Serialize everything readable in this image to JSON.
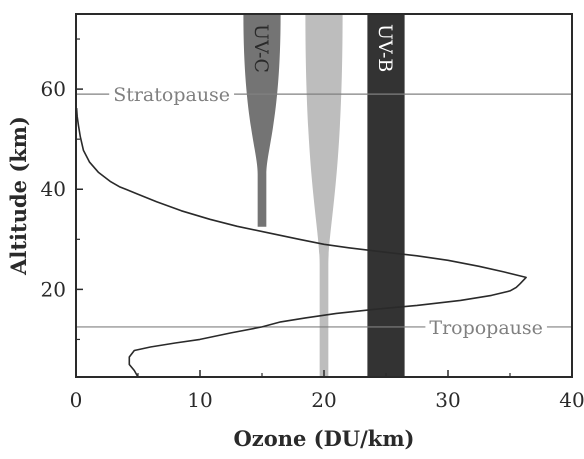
{
  "chart_data": {
    "type": "line",
    "title": "",
    "xlabel": "Ozone (DU/km)",
    "ylabel": "Altitude (km)",
    "xlim": [
      0,
      40
    ],
    "ylim": [
      2.5,
      75
    ],
    "x_ticks": [
      0,
      10,
      20,
      30,
      40
    ],
    "y_ticks": [
      20,
      40,
      60
    ],
    "x_tick_labels": [
      "0",
      "10",
      "20",
      "30",
      "40"
    ],
    "y_tick_labels": [
      "20",
      "40",
      "60"
    ],
    "grid": false,
    "series": [
      {
        "points": [
          [
            5.0,
            2.5
          ],
          [
            4.7,
            3.8
          ],
          [
            4.3,
            5.0
          ],
          [
            4.3,
            6.5
          ],
          [
            4.7,
            7.8
          ],
          [
            6.0,
            8.5
          ],
          [
            8.0,
            9.3
          ],
          [
            10.0,
            10.0
          ],
          [
            12.5,
            11.3
          ],
          [
            15.0,
            12.5
          ],
          [
            16.5,
            13.5
          ],
          [
            18.5,
            14.3
          ],
          [
            21.0,
            15.2
          ],
          [
            24.0,
            16.0
          ],
          [
            27.5,
            16.8
          ],
          [
            31.0,
            17.8
          ],
          [
            33.5,
            18.8
          ],
          [
            35.0,
            19.7
          ],
          [
            35.5,
            20.4
          ],
          [
            35.8,
            21.1
          ],
          [
            36.3,
            22.4
          ],
          [
            34.5,
            23.5
          ],
          [
            32.5,
            24.6
          ],
          [
            30.0,
            25.8
          ],
          [
            27.5,
            26.7
          ],
          [
            25.0,
            27.4
          ],
          [
            22.0,
            28.3
          ],
          [
            20.0,
            29.0
          ],
          [
            18.0,
            30.0
          ],
          [
            15.5,
            31.3
          ],
          [
            13.0,
            32.6
          ],
          [
            10.8,
            34.0
          ],
          [
            8.5,
            35.7
          ],
          [
            6.5,
            37.5
          ],
          [
            5.0,
            39.0
          ],
          [
            3.5,
            40.5
          ],
          [
            2.8,
            41.5
          ],
          [
            1.8,
            43.4
          ],
          [
            1.1,
            45.4
          ],
          [
            0.6,
            47.8
          ],
          [
            0.35,
            50.5
          ],
          [
            0.2,
            52.7
          ],
          [
            0.1,
            54.5
          ],
          [
            0.05,
            56.2
          ]
        ]
      }
    ],
    "bands": [
      {
        "label": "UV-C",
        "center": 15,
        "halfwidth_top": 1.5,
        "halfwidth_neck": 0.35,
        "neck_alt": 43,
        "bottom_alt": 32.5,
        "color": "#747474",
        "label_color": "#2a2a2a"
      },
      {
        "label": "",
        "center": 20,
        "halfwidth_top": 1.5,
        "halfwidth_neck": 0.35,
        "neck_alt": 25,
        "bottom_alt": 2.5,
        "color": "#bdbdbd",
        "label_color": "#2a2a2a"
      },
      {
        "label": "UV-B",
        "center": 25,
        "halfwidth_top": 1.5,
        "halfwidth_neck": 1.5,
        "neck_alt": 2.5,
        "bottom_alt": 2.5,
        "color": "#333333",
        "label_color": "#ffffff"
      }
    ],
    "reference_lines": [
      {
        "label": "Stratopause",
        "altitude": 59,
        "label_x": 3,
        "color": "#808080"
      },
      {
        "label": "Tropopause",
        "altitude": 12.5,
        "label_x": 28.5,
        "color": "#808080"
      }
    ]
  }
}
